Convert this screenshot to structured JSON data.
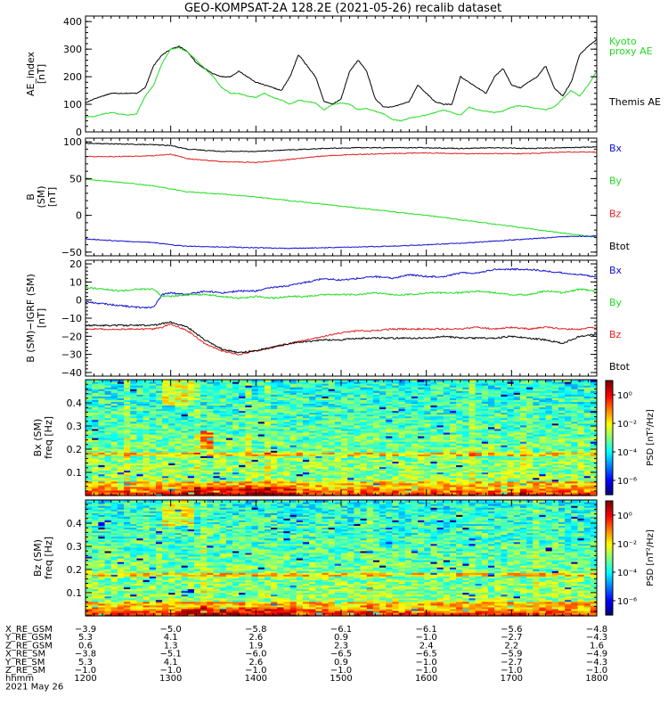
{
  "title": "GEO-KOMPSAT-2A 128.2E (2021-05-26) recalib dataset",
  "colors": {
    "black": "#000000",
    "green": "#22dd22",
    "red": "#e02020",
    "blue": "#1010d0"
  },
  "chart_data": [
    {
      "type": "line",
      "ylabel": [
        "AE_index",
        "[nT]"
      ],
      "ylim": [
        0,
        420
      ],
      "yticks": [
        0,
        100,
        200,
        300,
        400
      ],
      "legend": [
        {
          "label": "Kyoto",
          "color": "green"
        },
        {
          "label": "proxy AE",
          "color": "green"
        },
        {
          "label": "Themis AE",
          "color": "black"
        }
      ],
      "x": [
        1200,
        1210,
        1220,
        1230,
        1240,
        1250,
        1260,
        1270,
        1280,
        1290,
        1300,
        1310,
        1320,
        1330,
        1340,
        1350,
        1360,
        1370,
        1380,
        1390,
        1400,
        1410,
        1420,
        1430,
        1440,
        1450,
        1460,
        1470,
        1480,
        1490,
        1500,
        1510,
        1520,
        1530,
        1540,
        1550,
        1560,
        1570,
        1580,
        1590,
        1600,
        1610,
        1620,
        1630,
        1640,
        1650,
        1660,
        1670,
        1680,
        1690,
        1700,
        1710,
        1720,
        1730,
        1740,
        1750,
        1760,
        1770,
        1780,
        1790,
        1800
      ],
      "series": [
        {
          "name": "Themis AE",
          "color": "black",
          "values": [
            105,
            120,
            130,
            140,
            140,
            140,
            140,
            160,
            240,
            280,
            300,
            310,
            290,
            250,
            230,
            210,
            200,
            200,
            220,
            200,
            180,
            170,
            160,
            150,
            200,
            280,
            240,
            200,
            110,
            100,
            120,
            220,
            260,
            220,
            120,
            90,
            90,
            100,
            110,
            170,
            140,
            110,
            100,
            100,
            200,
            180,
            160,
            140,
            200,
            230,
            170,
            160,
            180,
            200,
            240,
            160,
            130,
            180,
            280,
            310,
            335
          ]
        },
        {
          "name": "Kyoto proxy AE",
          "color": "green",
          "values": [
            55,
            55,
            65,
            70,
            65,
            60,
            65,
            130,
            170,
            250,
            300,
            305,
            290,
            260,
            230,
            200,
            160,
            140,
            140,
            130,
            125,
            140,
            125,
            115,
            100,
            115,
            110,
            105,
            80,
            100,
            105,
            100,
            80,
            85,
            75,
            65,
            45,
            40,
            50,
            55,
            60,
            70,
            80,
            70,
            60,
            90,
            80,
            75,
            70,
            75,
            90,
            95,
            90,
            85,
            80,
            90,
            120,
            150,
            130,
            170,
            220
          ]
        }
      ]
    },
    {
      "type": "line",
      "ylabel": [
        "B",
        "(SM)",
        "[nT]"
      ],
      "ylim": [
        -55,
        105
      ],
      "yticks": [
        -50,
        0,
        50,
        100
      ],
      "legend": [
        {
          "label": "Bx",
          "color": "blue"
        },
        {
          "label": "By",
          "color": "green"
        },
        {
          "label": "Bz",
          "color": "red"
        },
        {
          "label": "Btot",
          "color": "black"
        }
      ],
      "x": [
        1200,
        1240,
        1280,
        1300,
        1320,
        1360,
        1400,
        1440,
        1480,
        1520,
        1560,
        1600,
        1640,
        1680,
        1720,
        1760,
        1800
      ],
      "series": [
        {
          "name": "Btot",
          "color": "black",
          "values": [
            98,
            97,
            96,
            95,
            90,
            87,
            87,
            89,
            91,
            92,
            92,
            92,
            91,
            92,
            91,
            92,
            93
          ]
        },
        {
          "name": "Bz",
          "color": "red",
          "values": [
            80,
            80,
            81,
            83,
            77,
            73,
            72,
            76,
            81,
            83,
            84,
            85,
            84,
            84,
            84,
            86,
            86
          ]
        },
        {
          "name": "By",
          "color": "green",
          "values": [
            49,
            45,
            40,
            36,
            32,
            29,
            25,
            20,
            15,
            10,
            5,
            0,
            -6,
            -12,
            -18,
            -24,
            -30
          ]
        },
        {
          "name": "Bx",
          "color": "blue",
          "values": [
            -32,
            -35,
            -37,
            -40,
            -42,
            -43,
            -44,
            -45,
            -44,
            -43,
            -42,
            -40,
            -38,
            -35,
            -32,
            -29,
            -28
          ]
        }
      ]
    },
    {
      "type": "line",
      "ylabel": [
        "B (SM)−IGRF (SM)",
        "[nT]"
      ],
      "ylim": [
        -42,
        22
      ],
      "yticks": [
        -40,
        -30,
        -20,
        -10,
        0,
        10,
        20
      ],
      "legend": [
        {
          "label": "Bx",
          "color": "blue"
        },
        {
          "label": "By",
          "color": "green"
        },
        {
          "label": "Bz",
          "color": "red"
        },
        {
          "label": "Btot",
          "color": "black"
        }
      ],
      "x": [
        1200,
        1220,
        1240,
        1260,
        1280,
        1290,
        1300,
        1320,
        1340,
        1360,
        1380,
        1400,
        1420,
        1440,
        1460,
        1480,
        1500,
        1520,
        1540,
        1560,
        1580,
        1600,
        1620,
        1640,
        1660,
        1680,
        1700,
        1720,
        1740,
        1760,
        1780,
        1800
      ],
      "series": [
        {
          "name": "Bx",
          "color": "blue",
          "values": [
            -1,
            -2,
            -3,
            -4,
            -4,
            3,
            4,
            3,
            5,
            4,
            5,
            5,
            7,
            8,
            10,
            12,
            11,
            12,
            13,
            12,
            14,
            13,
            13,
            15,
            15,
            17,
            17,
            17,
            16,
            15,
            14,
            13
          ]
        },
        {
          "name": "By",
          "color": "green",
          "values": [
            7,
            6,
            5,
            6,
            6,
            2,
            2,
            3,
            3,
            2,
            1,
            2,
            1,
            2,
            2,
            3,
            3,
            3,
            4,
            3,
            3,
            4,
            4,
            4,
            5,
            4,
            3,
            3,
            5,
            4,
            6,
            5
          ]
        },
        {
          "name": "Bz",
          "color": "red",
          "values": [
            -16,
            -16,
            -16,
            -16,
            -16,
            -15,
            -13,
            -17,
            -24,
            -28,
            -30,
            -28,
            -26,
            -24,
            -22,
            -20,
            -18,
            -17,
            -17,
            -16,
            -16,
            -16,
            -16,
            -16,
            -15,
            -16,
            -15,
            -16,
            -15,
            -16,
            -16,
            -15
          ]
        },
        {
          "name": "Btot",
          "color": "black",
          "values": [
            -14,
            -14,
            -14,
            -14,
            -14,
            -13,
            -12,
            -15,
            -22,
            -27,
            -29,
            -28,
            -26,
            -24,
            -23,
            -22,
            -22,
            -21,
            -21,
            -21,
            -21,
            -21,
            -20,
            -21,
            -21,
            -21,
            -20,
            -21,
            -22,
            -24,
            -20,
            -19
          ]
        }
      ]
    },
    {
      "type": "heatmap",
      "ylabel": [
        "Bx (SM)",
        "freq [Hz]"
      ],
      "ylim": [
        0,
        0.5
      ],
      "yticks": [
        0.1,
        0.2,
        0.3,
        0.4
      ],
      "colorbar": {
        "label": "PSD [nT²/Hz]",
        "ticks": [
          "10⁰",
          "10⁻²",
          "10⁻⁴",
          "10⁻⁶"
        ],
        "log_range": [
          -7,
          1
        ]
      }
    },
    {
      "type": "heatmap",
      "ylabel": [
        "Bz (SM)",
        "freq [Hz]"
      ],
      "ylim": [
        0,
        0.5
      ],
      "yticks": [
        0.1,
        0.2,
        0.3,
        0.4
      ],
      "colorbar": {
        "label": "PSD [nT²/Hz]",
        "ticks": [
          "10⁰",
          "10⁻²",
          "10⁻⁴",
          "10⁻⁶"
        ],
        "log_range": [
          -7,
          1
        ]
      }
    }
  ],
  "x_axis": {
    "ticks": [
      1200,
      1300,
      1400,
      1500,
      1600,
      1700,
      1800
    ],
    "rows": [
      {
        "label": "X_RE_GSM",
        "values": [
          "−3.9",
          "−5.0",
          "−5.8",
          "−6.1",
          "−6.1",
          "−5.6",
          "−4.8"
        ]
      },
      {
        "label": "Y_RE_GSM",
        "values": [
          "5.3",
          "4.1",
          "2.6",
          "0.9",
          "−1.0",
          "−2.7",
          "−4.3"
        ]
      },
      {
        "label": "Z_RE_GSM",
        "values": [
          "0.6",
          "1.3",
          "1.9",
          "2.3",
          "2.4",
          "2.2",
          "1.6"
        ]
      },
      {
        "label": "X_RE_SM",
        "values": [
          "−3.8",
          "−5.1",
          "−6.0",
          "−6.5",
          "−6.5",
          "−5.9",
          "−4.9"
        ]
      },
      {
        "label": "Y_RE_SM",
        "values": [
          "5.3",
          "4.1",
          "2.6",
          "0.9",
          "−1.0",
          "−2.7",
          "−4.3"
        ]
      },
      {
        "label": "Z_RE_SM",
        "values": [
          "−1.0",
          "−1.0",
          "−1.0",
          "−1.0",
          "−1.0",
          "−1.0",
          "−1.0"
        ]
      },
      {
        "label": "hhmm",
        "values": [
          "1200",
          "1300",
          "1400",
          "1500",
          "1600",
          "1700",
          "1800"
        ]
      }
    ],
    "date": "2021 May 26"
  }
}
